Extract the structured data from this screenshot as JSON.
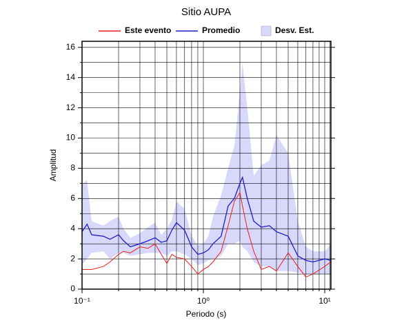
{
  "chart_data": {
    "type": "line",
    "title": "Sitio AUPA",
    "x_label": "Periodo (s)",
    "y_label": "Amplitud",
    "x_log": true,
    "grid": true,
    "legend": "top",
    "x": [
      0.1,
      0.11,
      0.12,
      0.15,
      0.17,
      0.2,
      0.22,
      0.25,
      0.3,
      0.35,
      0.4,
      0.45,
      0.5,
      0.55,
      0.6,
      0.7,
      0.8,
      0.9,
      1.0,
      1.1,
      1.2,
      1.4,
      1.6,
      1.8,
      2.0,
      2.1,
      2.3,
      2.6,
      3.0,
      3.5,
      4.0,
      5.0,
      6.0,
      7.0,
      8.0,
      10,
      11.25
    ],
    "band": {
      "name": "Desv. Est.",
      "color": "#d8d8fa",
      "upper": [
        7.0,
        7.2,
        4.5,
        4.2,
        4.5,
        4.8,
        4.0,
        3.4,
        3.7,
        4.1,
        4.4,
        3.6,
        4.0,
        4.6,
        5.8,
        5.3,
        3.5,
        2.9,
        3.0,
        3.5,
        4.8,
        6.2,
        8.0,
        9.5,
        13.0,
        15.0,
        12.0,
        7.5,
        8.2,
        8.5,
        10.2,
        9.0,
        4.5,
        2.8,
        2.5,
        2.5,
        3.0
      ],
      "lower": [
        1.6,
        2.0,
        2.4,
        2.5,
        2.0,
        2.4,
        2.4,
        2.2,
        2.3,
        2.4,
        2.4,
        2.4,
        2.2,
        2.5,
        2.5,
        2.3,
        2.0,
        1.6,
        1.7,
        1.9,
        2.0,
        2.2,
        3.0,
        3.0,
        3.2,
        2.8,
        2.5,
        1.8,
        1.5,
        1.5,
        1.2,
        1.2,
        1.1,
        1.0,
        1.0,
        1.0,
        1.0
      ]
    },
    "series": [
      {
        "name": "Este evento",
        "color": "#ee1c1c",
        "values": [
          1.3,
          1.3,
          1.3,
          1.5,
          1.8,
          2.3,
          2.5,
          2.4,
          2.8,
          2.7,
          3.0,
          2.3,
          1.7,
          2.3,
          2.1,
          2.0,
          1.5,
          1.0,
          1.3,
          1.5,
          1.8,
          2.5,
          4.2,
          5.8,
          6.4,
          5.5,
          4.0,
          2.5,
          1.3,
          1.5,
          1.2,
          2.4,
          1.5,
          0.8,
          1.0,
          1.5,
          1.8
        ]
      },
      {
        "name": "Promedio",
        "color": "#1c1ccc",
        "values": [
          3.8,
          4.3,
          3.6,
          3.5,
          3.3,
          3.6,
          3.2,
          2.8,
          3.0,
          3.2,
          3.4,
          3.1,
          3.2,
          3.9,
          4.4,
          3.9,
          2.8,
          2.3,
          2.4,
          2.6,
          3.0,
          3.5,
          5.5,
          6.0,
          7.0,
          7.4,
          6.0,
          4.5,
          4.1,
          4.2,
          3.8,
          3.5,
          2.2,
          1.9,
          1.8,
          2.0,
          1.9
        ]
      }
    ],
    "xlim": [
      0.1,
      11.25
    ],
    "ylim": [
      0,
      16.4
    ],
    "xticks": [
      {
        "value": 0.1,
        "label": "10⁻¹"
      },
      {
        "value": 1,
        "label": "10⁰"
      },
      {
        "value": 10,
        "label": "10¹"
      }
    ],
    "xminor": [
      0.2,
      0.3,
      0.4,
      0.5,
      0.6,
      0.7,
      0.8,
      0.9,
      2,
      3,
      4,
      5,
      6,
      7,
      8,
      9,
      11
    ],
    "yticks": [
      0,
      2,
      4,
      6,
      8,
      10,
      12,
      14,
      16
    ],
    "yminor": [
      1,
      3,
      5,
      7,
      9,
      11,
      13,
      15
    ]
  }
}
